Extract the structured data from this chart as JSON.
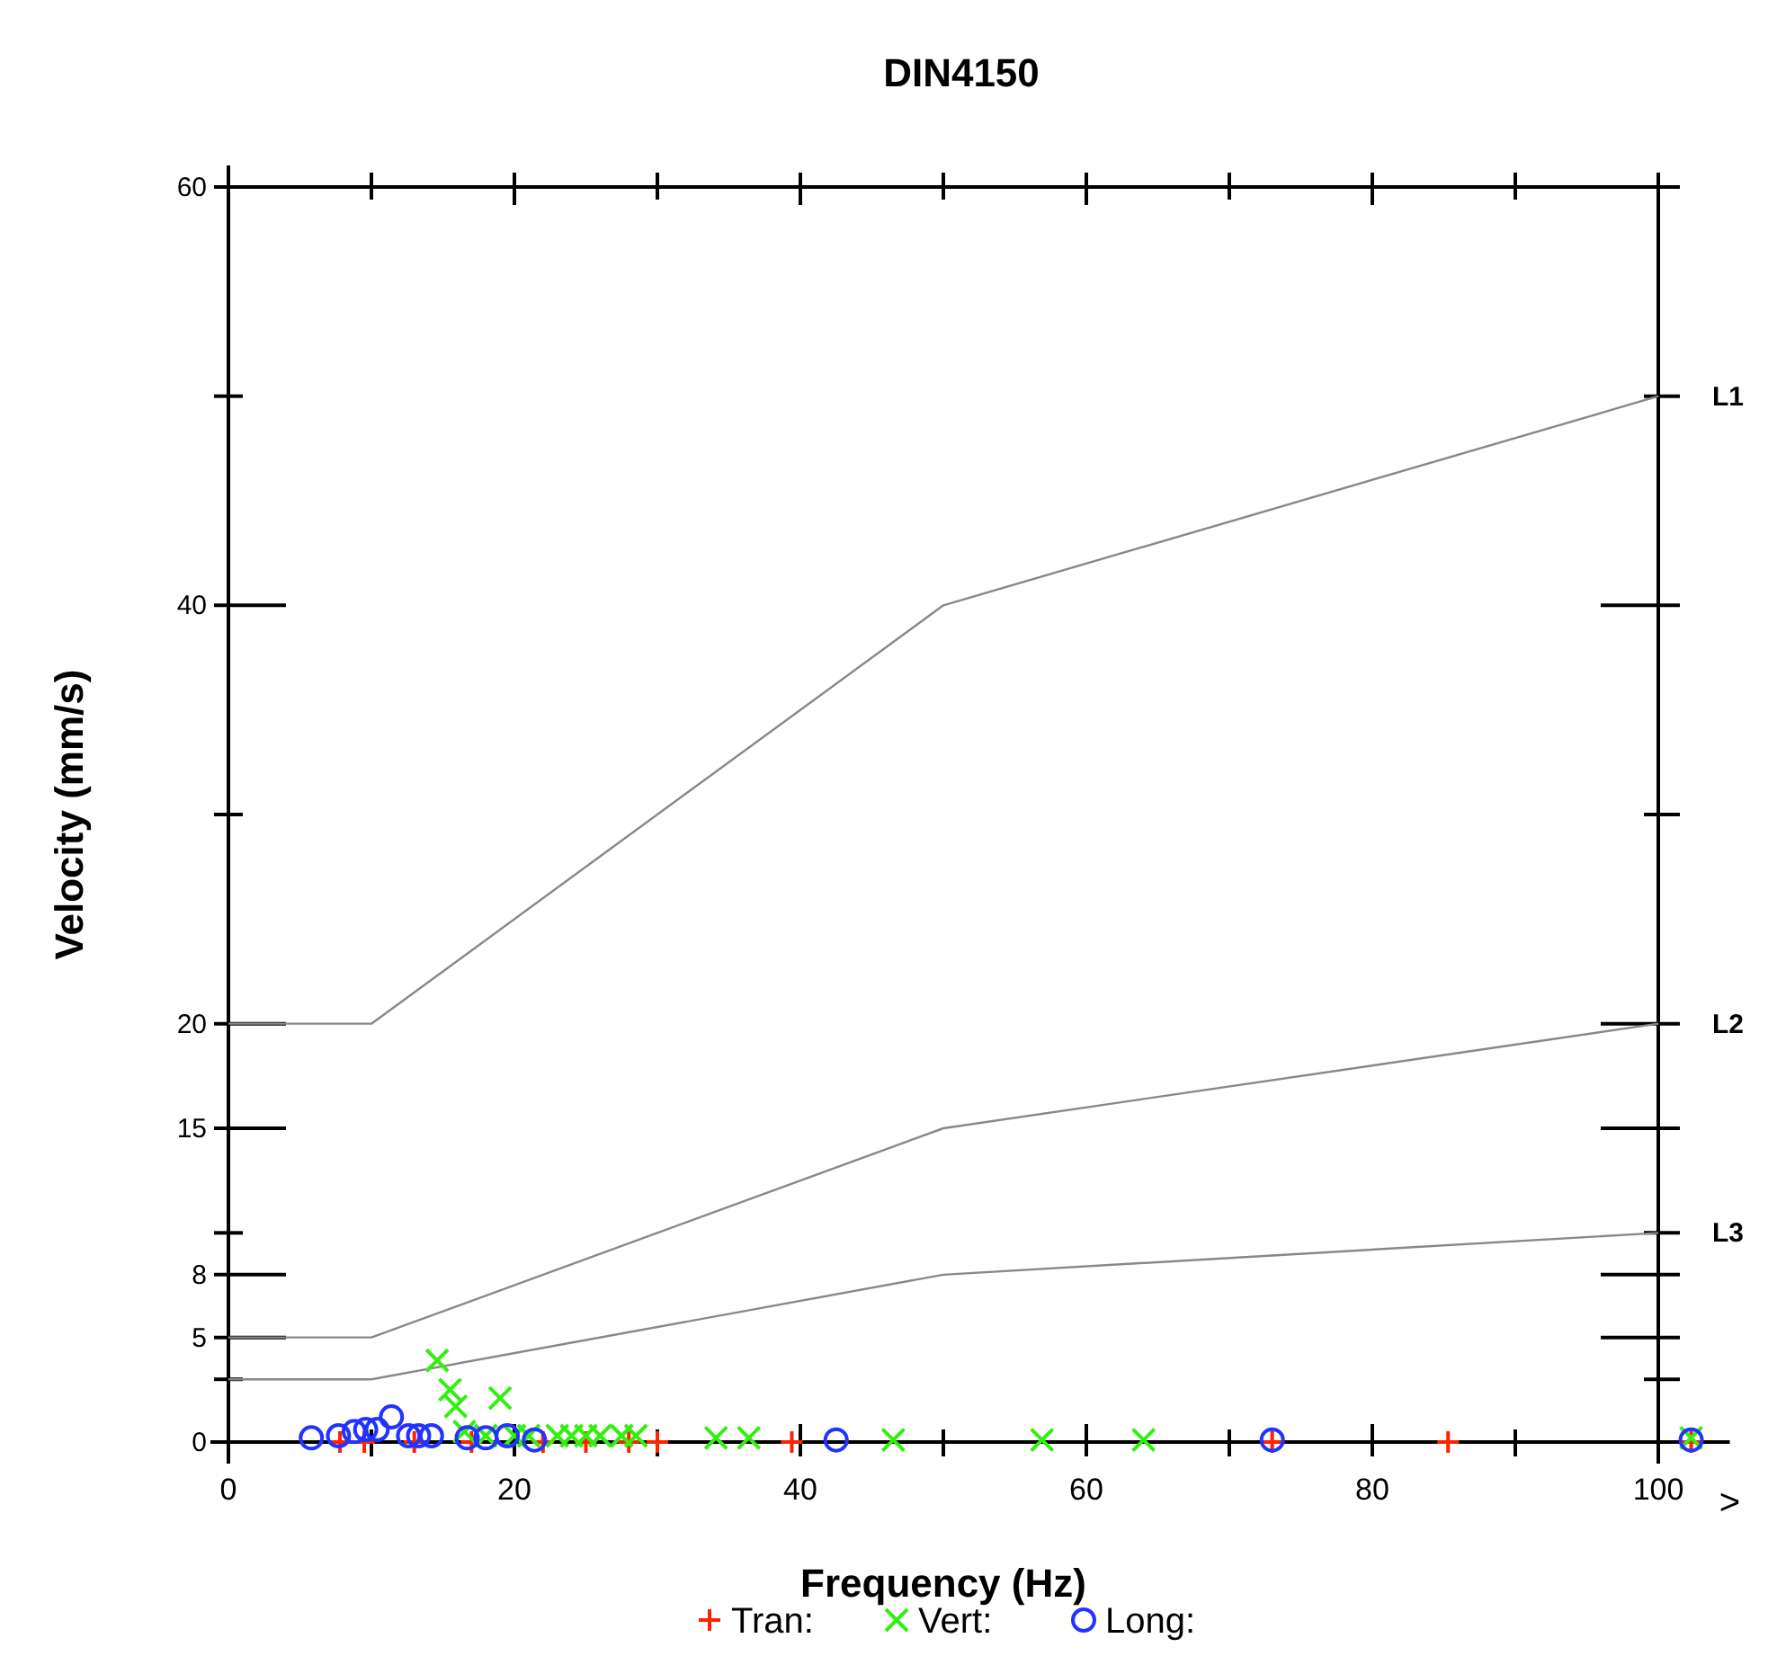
{
  "chart_data": {
    "type": "scatter",
    "title": "DIN4150",
    "xlabel": "Frequency (Hz)",
    "ylabel": "Velocity (mm/s)",
    "xlim": [
      0,
      105
    ],
    "xticks": [
      0,
      {
        "value": 10,
        "label": null
      },
      20,
      {
        "value": 30,
        "label": null
      },
      40,
      {
        "value": 50,
        "label": null
      },
      60,
      {
        "value": 70,
        "label": null
      },
      80,
      {
        "value": 90,
        "label": null
      },
      100,
      {
        "value": 105,
        "label": ">"
      }
    ],
    "ylim": [
      0,
      60
    ],
    "yticks": [
      0,
      {
        "value": 3,
        "label": null
      },
      5,
      8,
      {
        "value": 10,
        "label": null
      },
      15,
      20,
      {
        "value": 30,
        "label": null
      },
      40,
      {
        "value": 50,
        "label": null
      },
      60
    ],
    "legend": "bottom",
    "series": [
      {
        "name": "L1",
        "type": "line",
        "color": "#888888",
        "x": [
          0,
          10,
          50,
          100
        ],
        "values": [
          20,
          20,
          40,
          50
        ]
      },
      {
        "name": "L2",
        "type": "line",
        "color": "#888888",
        "x": [
          0,
          10,
          50,
          100
        ],
        "values": [
          5,
          5,
          15,
          20
        ]
      },
      {
        "name": "L3",
        "type": "line",
        "color": "#888888",
        "x": [
          0,
          10,
          50,
          100
        ],
        "values": [
          3,
          3,
          8,
          10
        ]
      },
      {
        "name": "Tran:",
        "color": "#ff2200",
        "marker": "cross",
        "x": [
          7.8,
          9.5,
          13,
          17,
          22,
          25,
          28,
          30,
          39.4,
          73,
          85.3,
          102.3
        ],
        "values": [
          0,
          0,
          0,
          0,
          0,
          0,
          0,
          0,
          0,
          0,
          0,
          0
        ]
      },
      {
        "name": "Vert:",
        "color": "#33ee11",
        "marker": "x",
        "x": [
          14.6,
          15.5,
          15.9,
          19,
          16.5,
          18,
          20,
          21,
          23,
          24,
          25,
          26,
          27.5,
          28.5,
          34.1,
          36.4,
          46.5,
          56.9,
          64,
          102.3
        ],
        "values": [
          3.9,
          2.5,
          1.7,
          2.1,
          0.5,
          0.3,
          0.3,
          0.3,
          0.3,
          0.3,
          0.3,
          0.3,
          0.3,
          0.3,
          0.2,
          0.2,
          0.1,
          0.1,
          0.1,
          0.2
        ]
      },
      {
        "name": "Long:",
        "color": "#2233ff",
        "marker": "circle",
        "x": [
          5.8,
          7.7,
          8.8,
          9.6,
          10.4,
          11.4,
          12.6,
          13.3,
          14.2,
          16.7,
          18,
          19.5,
          21.4,
          42.5,
          73,
          102.3
        ],
        "values": [
          0.2,
          0.3,
          0.5,
          0.6,
          0.6,
          1.2,
          0.3,
          0.3,
          0.3,
          0.2,
          0.2,
          0.3,
          0.1,
          0.1,
          0.1,
          0.1
        ]
      }
    ]
  }
}
